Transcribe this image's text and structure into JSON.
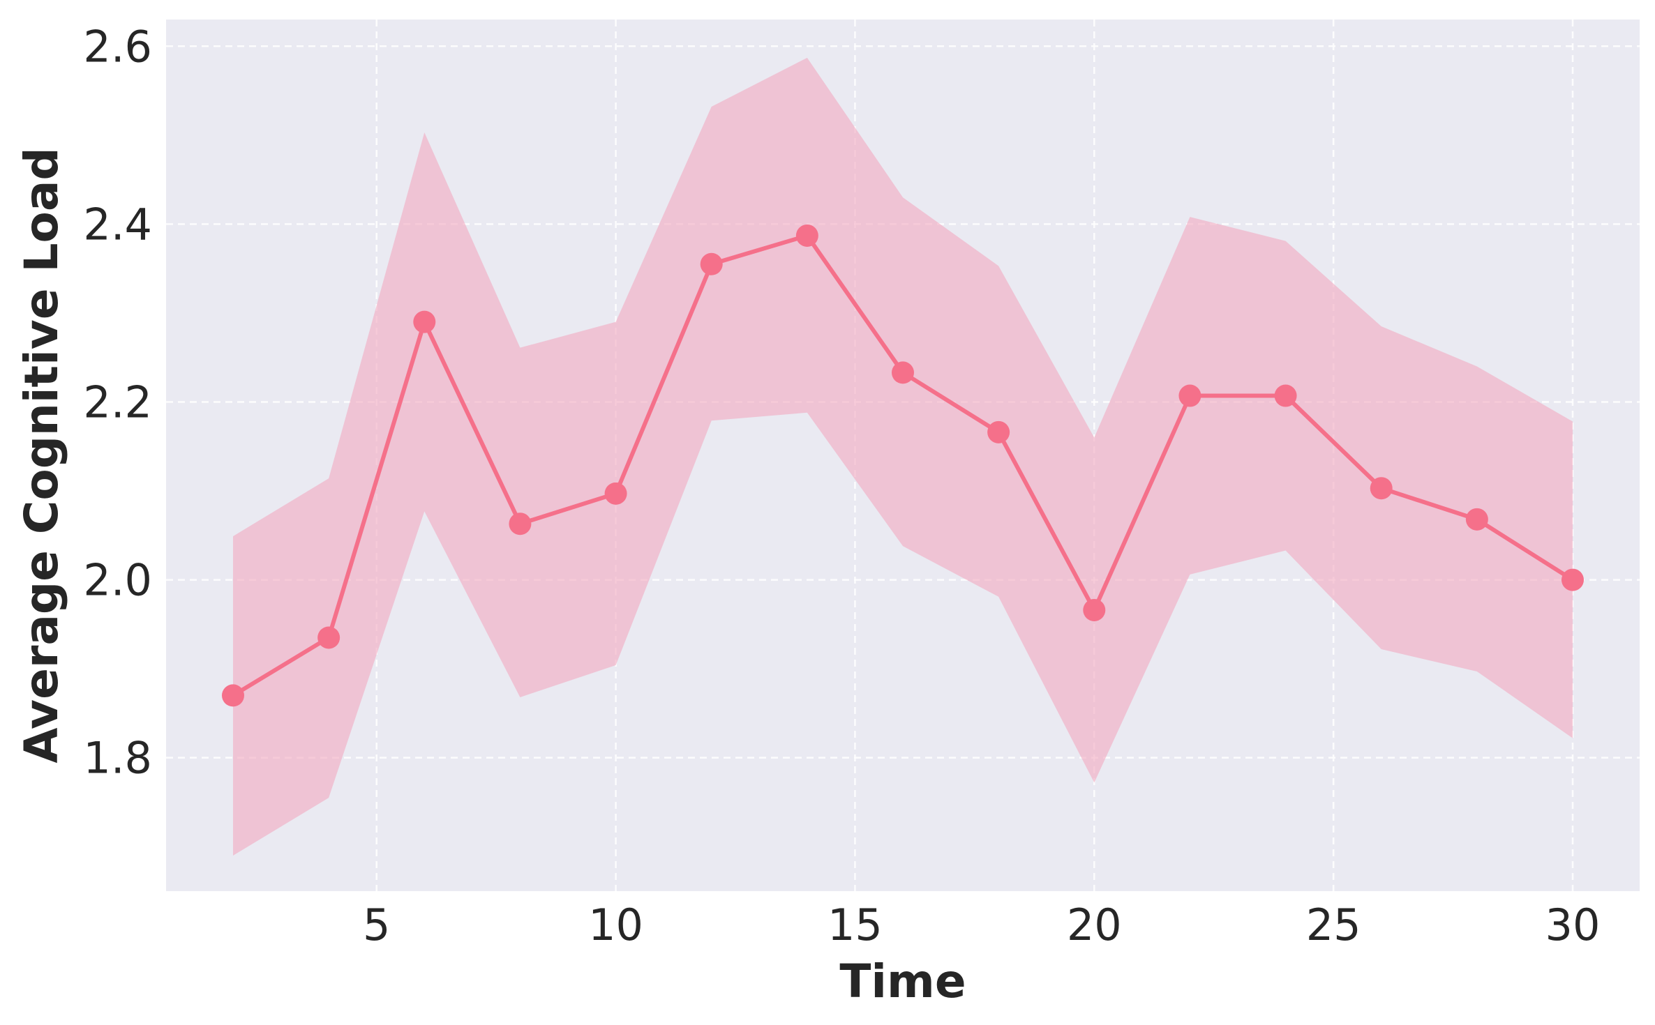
{
  "chart_data": {
    "type": "line",
    "title": "",
    "xlabel": "Time",
    "ylabel": "Average Cognitive Load",
    "xlim": [
      0.6,
      31.4
    ],
    "ylim": [
      1.65,
      2.63
    ],
    "xticks": [
      5,
      10,
      15,
      20,
      25,
      30
    ],
    "yticks": [
      1.8,
      2.0,
      2.2,
      2.4,
      2.6
    ],
    "grid": true,
    "legend": "none",
    "colors": {
      "line": "#f5708a",
      "band": "#f2a8bf",
      "background": "#eaeaf2",
      "grid": "#ffffff",
      "text": "#262626"
    },
    "series": [
      {
        "x": [
          2,
          4,
          6,
          8,
          10,
          12,
          14,
          16,
          18,
          20,
          22,
          24,
          26,
          28,
          30
        ],
        "values": [
          1.87,
          1.935,
          2.29,
          2.063,
          2.097,
          2.355,
          2.387,
          2.233,
          2.166,
          1.966,
          2.207,
          2.207,
          2.103,
          2.068,
          2.0
        ],
        "lower": [
          1.69,
          1.755,
          2.077,
          1.868,
          1.904,
          2.179,
          2.188,
          2.038,
          1.981,
          1.772,
          2.006,
          2.033,
          1.922,
          1.897,
          1.822
        ],
        "upper": [
          2.049,
          2.114,
          2.503,
          2.261,
          2.29,
          2.532,
          2.587,
          2.43,
          2.353,
          2.16,
          2.408,
          2.381,
          2.285,
          2.24,
          2.178
        ]
      }
    ]
  }
}
